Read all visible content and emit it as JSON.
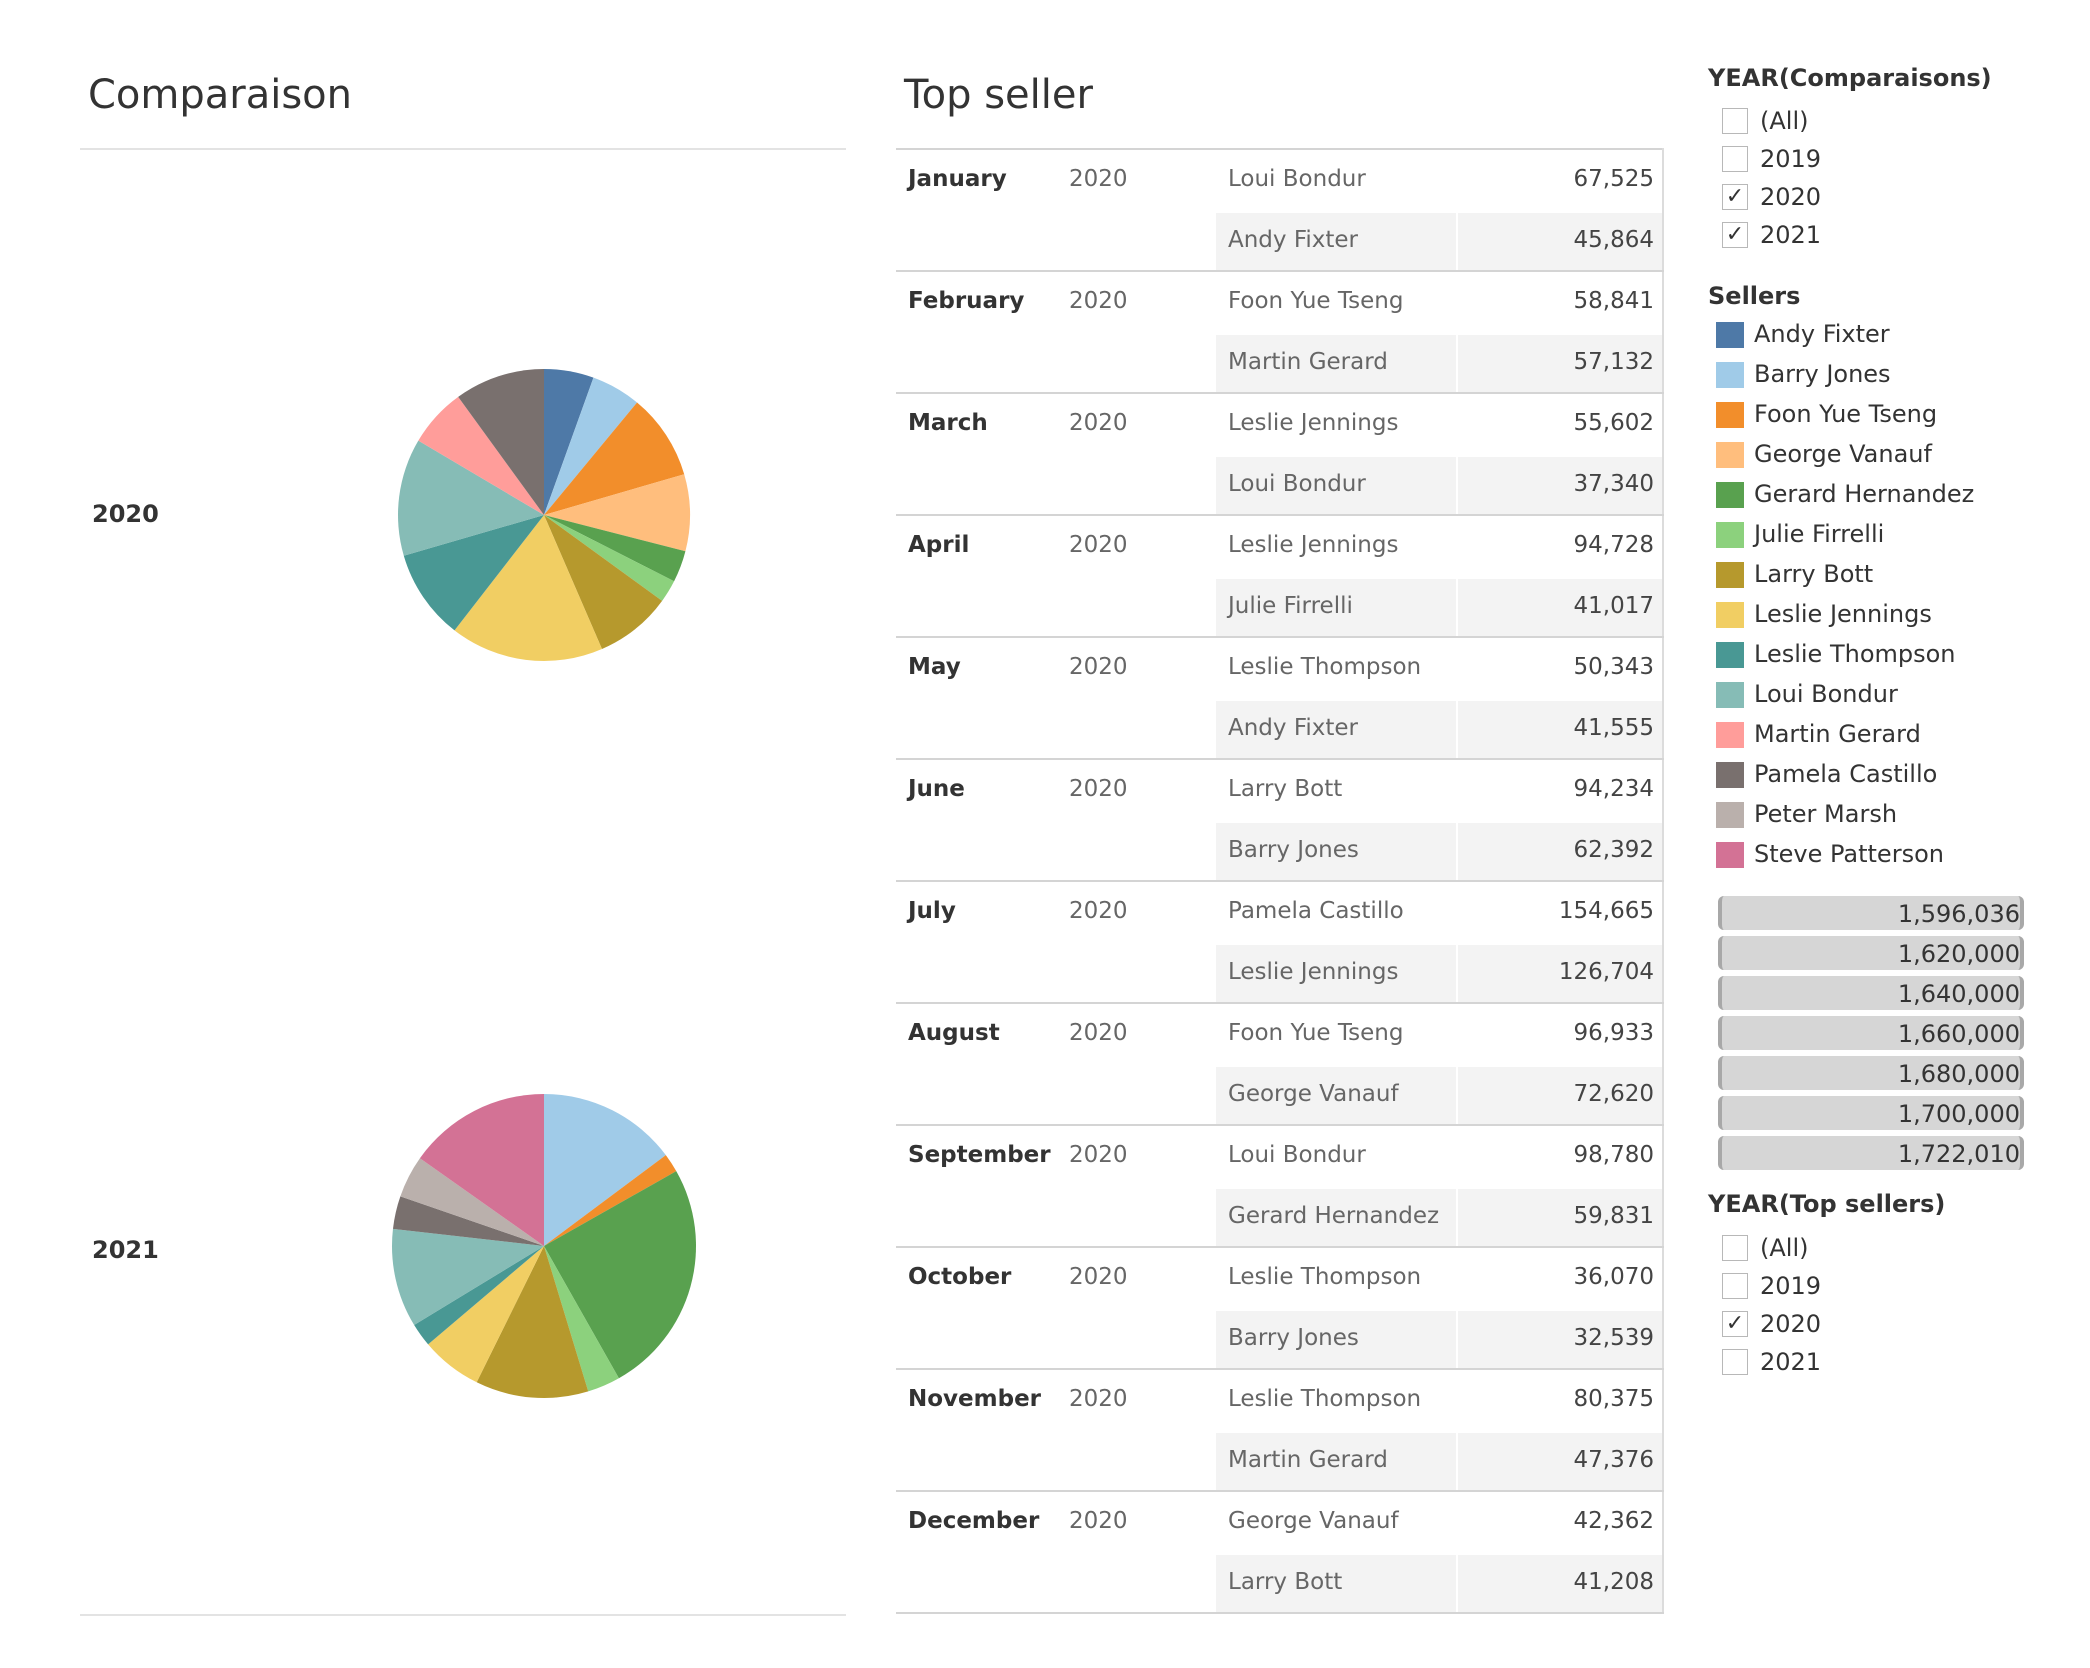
{
  "comparison": {
    "title": "Comparaison"
  },
  "top_seller": {
    "title": "Top seller",
    "rows": [
      {
        "month": "January",
        "year": "2020",
        "sellers": [
          {
            "name": "Loui Bondur",
            "value": "67,525"
          },
          {
            "name": "Andy Fixter",
            "value": "45,864"
          }
        ]
      },
      {
        "month": "February",
        "year": "2020",
        "sellers": [
          {
            "name": "Foon Yue Tseng",
            "value": "58,841"
          },
          {
            "name": "Martin Gerard",
            "value": "57,132"
          }
        ]
      },
      {
        "month": "March",
        "year": "2020",
        "sellers": [
          {
            "name": "Leslie Jennings",
            "value": "55,602"
          },
          {
            "name": "Loui Bondur",
            "value": "37,340"
          }
        ]
      },
      {
        "month": "April",
        "year": "2020",
        "sellers": [
          {
            "name": "Leslie Jennings",
            "value": "94,728"
          },
          {
            "name": "Julie Firrelli",
            "value": "41,017"
          }
        ]
      },
      {
        "month": "May",
        "year": "2020",
        "sellers": [
          {
            "name": "Leslie Thompson",
            "value": "50,343"
          },
          {
            "name": "Andy Fixter",
            "value": "41,555"
          }
        ]
      },
      {
        "month": "June",
        "year": "2020",
        "sellers": [
          {
            "name": "Larry Bott",
            "value": "94,234"
          },
          {
            "name": "Barry Jones",
            "value": "62,392"
          }
        ]
      },
      {
        "month": "July",
        "year": "2020",
        "sellers": [
          {
            "name": "Pamela Castillo",
            "value": "154,665"
          },
          {
            "name": "Leslie Jennings",
            "value": "126,704"
          }
        ]
      },
      {
        "month": "August",
        "year": "2020",
        "sellers": [
          {
            "name": "Foon Yue Tseng",
            "value": "96,933"
          },
          {
            "name": "George Vanauf",
            "value": "72,620"
          }
        ]
      },
      {
        "month": "September",
        "year": "2020",
        "sellers": [
          {
            "name": "Loui Bondur",
            "value": "98,780"
          },
          {
            "name": "Gerard Hernandez",
            "value": "59,831"
          }
        ]
      },
      {
        "month": "October",
        "year": "2020",
        "sellers": [
          {
            "name": "Leslie Thompson",
            "value": "36,070"
          },
          {
            "name": "Barry Jones",
            "value": "32,539"
          }
        ]
      },
      {
        "month": "November",
        "year": "2020",
        "sellers": [
          {
            "name": "Leslie Thompson",
            "value": "80,375"
          },
          {
            "name": "Martin Gerard",
            "value": "47,376"
          }
        ]
      },
      {
        "month": "December",
        "year": "2020",
        "sellers": [
          {
            "name": "George Vanauf",
            "value": "42,362"
          },
          {
            "name": "Larry Bott",
            "value": "41,208"
          }
        ]
      }
    ]
  },
  "filters": {
    "year_comparisons": {
      "title": "YEAR(Comparaisons)",
      "options": [
        {
          "label": "(All)",
          "checked": false
        },
        {
          "label": "2019",
          "checked": false
        },
        {
          "label": "2020",
          "checked": true
        },
        {
          "label": "2021",
          "checked": true
        }
      ]
    },
    "year_top_sellers": {
      "title": "YEAR(Top sellers)",
      "options": [
        {
          "label": "(All)",
          "checked": false
        },
        {
          "label": "2019",
          "checked": false
        },
        {
          "label": "2020",
          "checked": true
        },
        {
          "label": "2021",
          "checked": false
        }
      ]
    },
    "check_mark": "✓"
  },
  "legend": {
    "title": "Sellers",
    "items": [
      {
        "name": "Andy Fixter",
        "color": "#4e79a7"
      },
      {
        "name": "Barry Jones",
        "color": "#a0cbe8"
      },
      {
        "name": "Foon Yue Tseng",
        "color": "#f28e2b"
      },
      {
        "name": "George Vanauf",
        "color": "#ffbe7d"
      },
      {
        "name": "Gerard Hernandez",
        "color": "#59a14f"
      },
      {
        "name": "Julie Firrelli",
        "color": "#8cd17d"
      },
      {
        "name": "Larry Bott",
        "color": "#b6992d"
      },
      {
        "name": "Leslie Jennings",
        "color": "#f1ce63"
      },
      {
        "name": "Leslie Thompson",
        "color": "#499894"
      },
      {
        "name": "Loui Bondur",
        "color": "#86bcb6"
      },
      {
        "name": "Martin Gerard",
        "color": "#ff9d9a"
      },
      {
        "name": "Pamela Castillo",
        "color": "#79706e"
      },
      {
        "name": "Peter Marsh",
        "color": "#bab0ac"
      },
      {
        "name": "Steve Patterson",
        "color": "#d37295"
      }
    ]
  },
  "size_legend": {
    "values": [
      "1,596,036",
      "1,620,000",
      "1,640,000",
      "1,660,000",
      "1,680,000",
      "1,700,000",
      "1,722,010"
    ]
  },
  "chart_data": [
    {
      "type": "pie",
      "label": "2020",
      "slices": [
        {
          "seller": "Andy Fixter",
          "share": 0.055
        },
        {
          "seller": "Barry Jones",
          "share": 0.055
        },
        {
          "seller": "Foon Yue Tseng",
          "share": 0.095
        },
        {
          "seller": "George Vanauf",
          "share": 0.085
        },
        {
          "seller": "Gerard Hernandez",
          "share": 0.035
        },
        {
          "seller": "Julie Firrelli",
          "share": 0.025
        },
        {
          "seller": "Larry Bott",
          "share": 0.085
        },
        {
          "seller": "Leslie Jennings",
          "share": 0.17
        },
        {
          "seller": "Leslie Thompson",
          "share": 0.1
        },
        {
          "seller": "Loui Bondur",
          "share": 0.13
        },
        {
          "seller": "Martin Gerard",
          "share": 0.065
        },
        {
          "seller": "Pamela Castillo",
          "share": 0.1
        }
      ]
    },
    {
      "type": "pie",
      "label": "2021",
      "slices": [
        {
          "seller": "Barry Jones",
          "share": 0.148
        },
        {
          "seller": "Foon Yue Tseng",
          "share": 0.02
        },
        {
          "seller": "Gerard Hernandez",
          "share": 0.25
        },
        {
          "seller": "Julie Firrelli",
          "share": 0.035
        },
        {
          "seller": "Larry Bott",
          "share": 0.12
        },
        {
          "seller": "Leslie Jennings",
          "share": 0.065
        },
        {
          "seller": "Leslie Thompson",
          "share": 0.025
        },
        {
          "seller": "Loui Bondur",
          "share": 0.105
        },
        {
          "seller": "Pamela Castillo",
          "share": 0.035
        },
        {
          "seller": "Peter Marsh",
          "share": 0.045
        },
        {
          "seller": "Steve Patterson",
          "share": 0.152
        }
      ]
    }
  ]
}
